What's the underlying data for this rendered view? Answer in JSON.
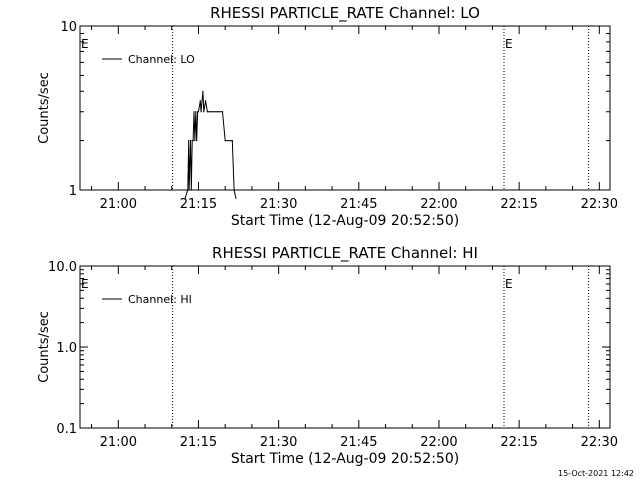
{
  "chart_data": [
    {
      "type": "line",
      "title": "RHESSI PARTICLE_RATE Channel: LO",
      "xlabel": "Start Time (12-Aug-09 20:52:50)",
      "ylabel": "Counts/sec",
      "y_scale": "log",
      "ylim": [
        1,
        10
      ],
      "y_ticks": [
        "1",
        "10"
      ],
      "xlim": [
        "20:52:50",
        "22:32:00"
      ],
      "x_ticks": [
        "21:00",
        "21:15",
        "21:30",
        "21:45",
        "22:00",
        "22:15",
        "22:30"
      ],
      "legend": {
        "position": "top-left",
        "entries": [
          "Channel: LO"
        ]
      },
      "event_lines": [
        {
          "time": "21:10:10",
          "label": ""
        },
        {
          "time": "22:12:10",
          "label": "E"
        },
        {
          "time": "22:28:00",
          "label": ""
        }
      ],
      "start_marker_label": "E",
      "series": [
        {
          "name": "Channel: LO",
          "x": [
            "21:12:30",
            "21:13:00",
            "21:13:10",
            "21:13:15",
            "21:13:30",
            "21:13:40",
            "21:13:50",
            "21:14:00",
            "21:14:10",
            "21:14:20",
            "21:14:30",
            "21:14:40",
            "21:14:50",
            "21:15:00",
            "21:15:20",
            "21:15:30",
            "21:15:50",
            "21:16:00",
            "21:16:20",
            "21:16:40",
            "21:17:00",
            "21:17:10",
            "21:17:30",
            "21:18:00",
            "21:18:30",
            "21:19:00",
            "21:19:30",
            "21:20:00",
            "21:20:30",
            "21:21:00",
            "21:21:20",
            "21:21:40",
            "21:22:00"
          ],
          "values": [
            0.9,
            1.0,
            2.0,
            1.0,
            2.0,
            1.0,
            2.0,
            2.0,
            3.0,
            2.0,
            3.0,
            2.0,
            3.0,
            3.0,
            3.5,
            3.0,
            4.0,
            3.0,
            3.5,
            3.0,
            3.0,
            3.0,
            3.0,
            3.0,
            3.0,
            3.0,
            3.0,
            2.0,
            2.0,
            2.0,
            2.0,
            1.0,
            0.9
          ]
        }
      ]
    },
    {
      "type": "line",
      "title": "RHESSI PARTICLE_RATE Channel: HI",
      "xlabel": "Start Time (12-Aug-09 20:52:50)",
      "ylabel": "Counts/sec",
      "y_scale": "log",
      "ylim": [
        0.1,
        10
      ],
      "y_ticks": [
        "0.1",
        "1.0",
        "10.0"
      ],
      "xlim": [
        "20:52:50",
        "22:32:00"
      ],
      "x_ticks": [
        "21:00",
        "21:15",
        "21:30",
        "21:45",
        "22:00",
        "22:15",
        "22:30"
      ],
      "legend": {
        "position": "top-left",
        "entries": [
          "Channel: HI"
        ]
      },
      "event_lines": [
        {
          "time": "21:10:10",
          "label": ""
        },
        {
          "time": "22:12:10",
          "label": "E"
        },
        {
          "time": "22:28:00",
          "label": ""
        }
      ],
      "start_marker_label": "E",
      "series": [
        {
          "name": "Channel: HI",
          "x": [],
          "values": []
        }
      ]
    }
  ],
  "footer": {
    "timestamp": "15-Oct-2021 12:42"
  }
}
